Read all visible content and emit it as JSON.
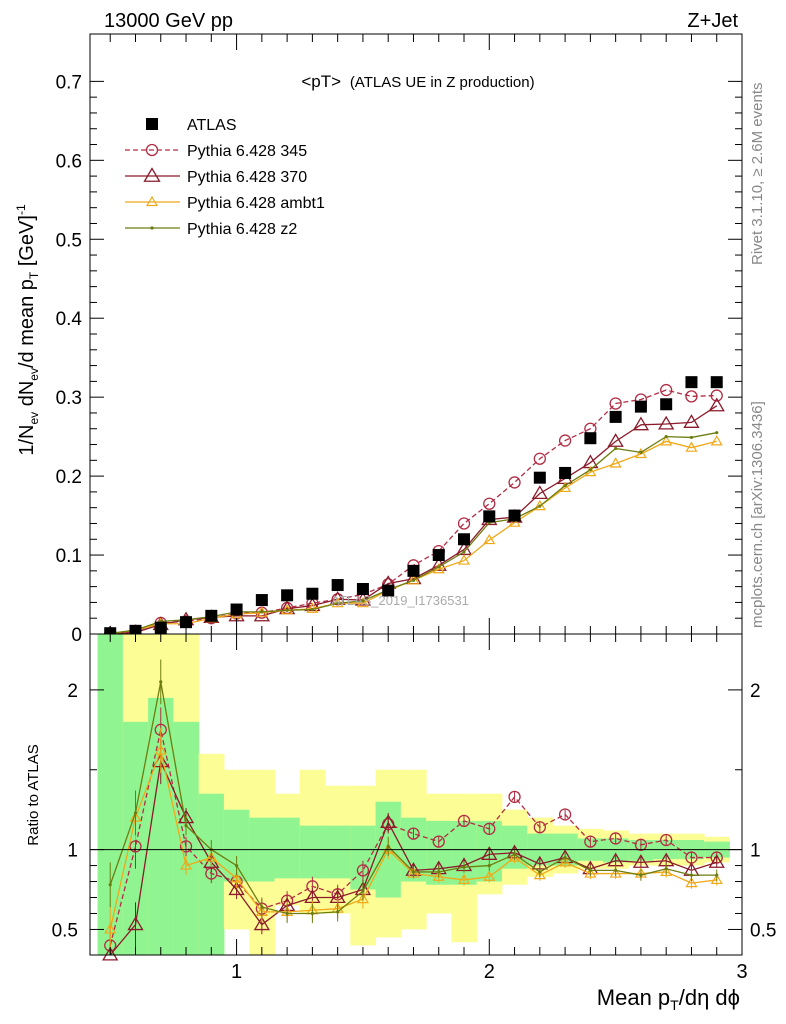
{
  "header": {
    "left": "13000 GeV pp",
    "right": "Z+Jet"
  },
  "side_labels": {
    "rivet": "Rivet 3.1.10, ≥ 2.6M events",
    "mcplots": "mcplots.cern.ch [arXiv:1306.3436]"
  },
  "plot_title_main": "<pT>",
  "plot_title_sub": "(ATLAS UE in Z production)",
  "watermark": "ATLAS_2019_I1736531",
  "axis_labels": {
    "top_y_main": "1/N",
    "top_y_sub1": "ev",
    "top_y_mid": " dN",
    "top_y_sub2": "ev",
    "top_y_rest": "/d mean p",
    "top_y_sub3": "T",
    "top_y_unit": " [GeV]",
    "top_y_sup": "-1",
    "bottom_y": "Ratio to ATLAS",
    "x_main": "Mean p",
    "x_sub": "T",
    "x_rest": "/dη dϕ"
  },
  "colors": {
    "atlas": "#000000",
    "p345": "#b22d44",
    "p370": "#8b1a2b",
    "ambt1": "#f0a818",
    "z2": "#6e7d10",
    "band_inner": "#90f590",
    "band_outer": "#fdfd96"
  },
  "chart_data": [
    {
      "type": "scatter",
      "title": "<pT> (ATLAS UE in Z production)",
      "xlabel": "Mean pT/dη dϕ",
      "ylabel": "1/Nev dNev/d mean pT [GeV]-1",
      "xlim": [
        0.42,
        3.0
      ],
      "ylim": [
        0,
        0.76
      ],
      "x_ticks": [
        1,
        2,
        3
      ],
      "y_ticks": [
        0,
        0.1,
        0.2,
        0.3,
        0.4,
        0.5,
        0.6,
        0.7
      ],
      "y_tick_labels": [
        "0",
        "0.1",
        "0.2",
        "0.3",
        "0.4",
        "0.5",
        "0.6",
        "0.7"
      ],
      "legend_position": "top-left",
      "x": [
        0.5,
        0.6,
        0.7,
        0.8,
        0.9,
        1.0,
        1.1,
        1.2,
        1.3,
        1.4,
        1.5,
        1.6,
        1.7,
        1.8,
        1.9,
        2.0,
        2.1,
        2.2,
        2.3,
        2.4,
        2.5,
        2.6,
        2.7,
        2.8,
        2.9
      ],
      "series": [
        {
          "name": "ATLAS",
          "key": "atlas",
          "values": [
            0.001,
            0.004,
            0.008,
            0.015,
            0.023,
            0.031,
            0.043,
            0.049,
            0.051,
            0.062,
            0.057,
            0.055,
            0.08,
            0.1,
            0.12,
            0.149,
            0.15,
            0.198,
            0.204,
            0.248,
            0.275,
            0.288,
            0.291,
            0.319,
            0.319
          ]
        },
        {
          "name": "Pythia 6.428 345",
          "key": "p345",
          "values": [
            0.0005,
            0.004,
            0.014,
            0.016,
            0.02,
            0.026,
            0.027,
            0.033,
            0.039,
            0.044,
            0.05,
            0.063,
            0.087,
            0.105,
            0.14,
            0.165,
            0.192,
            0.222,
            0.245,
            0.26,
            0.292,
            0.297,
            0.309,
            0.301,
            0.302
          ]
        },
        {
          "name": "Pythia 6.428 370",
          "key": "p370",
          "values": [
            0.0003,
            0.002,
            0.012,
            0.018,
            0.021,
            0.023,
            0.023,
            0.032,
            0.036,
            0.044,
            0.043,
            0.064,
            0.07,
            0.087,
            0.107,
            0.145,
            0.148,
            0.178,
            0.197,
            0.217,
            0.244,
            0.265,
            0.266,
            0.268,
            0.289
          ]
        },
        {
          "name": "Pythia 6.428 ambt1",
          "key": "ambt1",
          "values": [
            0.0005,
            0.005,
            0.013,
            0.013,
            0.02,
            0.025,
            0.027,
            0.03,
            0.032,
            0.039,
            0.039,
            0.055,
            0.068,
            0.082,
            0.093,
            0.119,
            0.141,
            0.162,
            0.185,
            0.205,
            0.216,
            0.228,
            0.244,
            0.236,
            0.244
          ]
        },
        {
          "name": "Pythia 6.428 z2",
          "key": "z2",
          "values": [
            0.0008,
            0.005,
            0.016,
            0.018,
            0.022,
            0.028,
            0.028,
            0.03,
            0.031,
            0.039,
            0.042,
            0.056,
            0.068,
            0.085,
            0.104,
            0.141,
            0.146,
            0.162,
            0.188,
            0.208,
            0.235,
            0.23,
            0.25,
            0.249,
            0.255
          ]
        }
      ]
    },
    {
      "type": "line",
      "ylabel": "Ratio to ATLAS",
      "xlabel": "Mean pT/dη dϕ",
      "ylim": [
        0.34,
        2.35
      ],
      "x_ticks": [
        1,
        2,
        3
      ],
      "y_ticks": [
        0.5,
        1,
        2
      ],
      "y_tick_labels": [
        "0.5",
        "1",
        "2"
      ],
      "x": [
        0.5,
        0.6,
        0.7,
        0.8,
        0.9,
        1.0,
        1.1,
        1.2,
        1.3,
        1.4,
        1.5,
        1.6,
        1.7,
        1.8,
        1.9,
        2.0,
        2.1,
        2.2,
        2.3,
        2.4,
        2.5,
        2.6,
        2.7,
        2.8,
        2.9
      ],
      "bins": [
        0.45,
        0.55,
        0.65,
        0.75,
        0.85,
        0.95,
        1.05,
        1.15,
        1.25,
        1.35,
        1.45,
        1.55,
        1.65,
        1.75,
        1.85,
        1.95,
        2.05,
        2.15,
        2.25,
        2.35,
        2.45,
        2.55,
        2.65,
        2.75,
        2.85,
        2.95
      ],
      "band_inner": [
        [
          0.3,
          2.4
        ],
        [
          0.3,
          1.8
        ],
        [
          0.3,
          1.95
        ],
        [
          0.3,
          1.8
        ],
        [
          0.3,
          1.35
        ],
        [
          0.8,
          1.25
        ],
        [
          0.8,
          1.2
        ],
        [
          0.82,
          1.2
        ],
        [
          0.82,
          1.15
        ],
        [
          0.82,
          1.15
        ],
        [
          0.75,
          1.15
        ],
        [
          0.7,
          1.3
        ],
        [
          0.8,
          1.2
        ],
        [
          0.78,
          1.18
        ],
        [
          0.78,
          1.18
        ],
        [
          0.8,
          1.18
        ],
        [
          0.88,
          1.15
        ],
        [
          0.9,
          1.1
        ],
        [
          0.9,
          1.1
        ],
        [
          0.93,
          1.07
        ],
        [
          0.92,
          1.07
        ],
        [
          0.93,
          1.06
        ],
        [
          0.94,
          1.06
        ],
        [
          0.94,
          1.06
        ],
        [
          0.95,
          1.05
        ]
      ],
      "band_outer": [
        [
          0.3,
          2.4
        ],
        [
          0.3,
          2.4
        ],
        [
          0.3,
          2.4
        ],
        [
          0.3,
          2.4
        ],
        [
          0.3,
          1.6
        ],
        [
          0.5,
          1.5
        ],
        [
          0.3,
          1.5
        ],
        [
          0.65,
          1.35
        ],
        [
          0.6,
          1.5
        ],
        [
          0.6,
          1.4
        ],
        [
          0.4,
          1.4
        ],
        [
          0.45,
          1.5
        ],
        [
          0.5,
          1.5
        ],
        [
          0.6,
          1.35
        ],
        [
          0.42,
          1.35
        ],
        [
          0.72,
          1.35
        ],
        [
          0.78,
          1.25
        ],
        [
          0.83,
          1.2
        ],
        [
          0.85,
          1.15
        ],
        [
          0.88,
          1.13
        ],
        [
          0.88,
          1.12
        ],
        [
          0.9,
          1.1
        ],
        [
          0.9,
          1.1
        ],
        [
          0.9,
          1.1
        ],
        [
          0.92,
          1.08
        ]
      ],
      "series": [
        {
          "name": "Pythia 6.428 345",
          "key": "p345",
          "values": [
            0.4,
            1.02,
            1.75,
            1.02,
            0.85,
            0.8,
            0.63,
            0.68,
            0.77,
            0.72,
            0.87,
            1.16,
            1.1,
            1.05,
            1.18,
            1.13,
            1.33,
            1.14,
            1.22,
            1.05,
            1.07,
            1.03,
            1.06,
            0.95,
            0.95
          ]
        },
        {
          "name": "Pythia 6.428 370",
          "key": "p370",
          "values": [
            0.27,
            0.53,
            1.55,
            1.2,
            0.92,
            0.75,
            0.53,
            0.65,
            0.7,
            0.7,
            0.75,
            1.17,
            0.87,
            0.88,
            0.9,
            0.97,
            0.98,
            0.91,
            0.95,
            0.88,
            0.93,
            0.92,
            0.93,
            0.87,
            0.92
          ]
        },
        {
          "name": "Pythia 6.428 ambt1",
          "key": "ambt1",
          "values": [
            0.5,
            1.2,
            1.62,
            0.9,
            0.95,
            0.82,
            0.61,
            0.61,
            0.62,
            0.63,
            0.69,
            1.0,
            0.85,
            0.83,
            0.81,
            0.83,
            0.95,
            0.84,
            0.92,
            0.85,
            0.85,
            0.85,
            0.86,
            0.79,
            0.81
          ]
        },
        {
          "name": "Pythia 6.428 z2",
          "key": "z2",
          "values": [
            0.78,
            1.23,
            2.05,
            1.15,
            1.0,
            0.9,
            0.64,
            0.6,
            0.6,
            0.61,
            0.74,
            1.02,
            0.86,
            0.86,
            0.89,
            0.9,
            0.97,
            0.86,
            0.95,
            0.87,
            0.87,
            0.84,
            0.88,
            0.84,
            0.84
          ]
        }
      ]
    }
  ]
}
